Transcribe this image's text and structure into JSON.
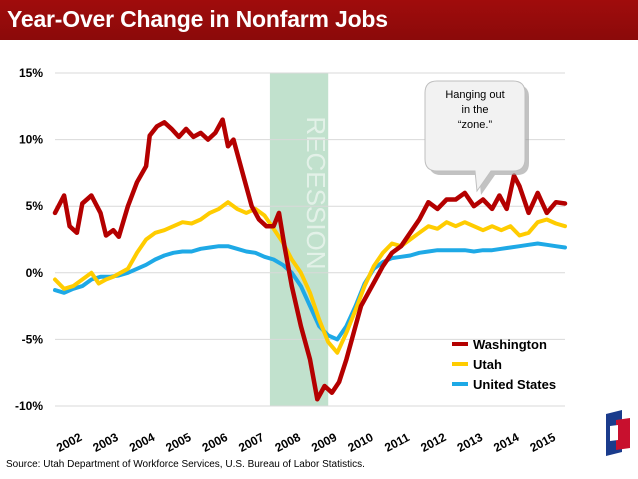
{
  "header": {
    "title": "Year-Over Change in Nonfarm Jobs"
  },
  "source": "Source: Utah Department of Workforce Services, U.S. Bureau of Labor Statistics.",
  "callout": {
    "lines": [
      "Hanging out",
      "in the",
      "“zone.”"
    ]
  },
  "recession_label": "RECESSION",
  "colors": {
    "header": "#990b0b",
    "washington": "#b40000",
    "utah": "#ffcc00",
    "us": "#1ea9e6",
    "recession": "#b6dcc4"
  },
  "chart_data": {
    "type": "line",
    "title": "Year-Over Change in Nonfarm Jobs",
    "xlabel": "",
    "ylabel": "",
    "ylim": [
      -10,
      15
    ],
    "yticks": [
      "15%",
      "10%",
      "5%",
      "0%",
      "-5%",
      "-10%"
    ],
    "ytick_values": [
      15,
      10,
      5,
      0,
      -5,
      -10
    ],
    "xticks": [
      "2002",
      "2003",
      "2004",
      "2005",
      "2006",
      "2007",
      "2008",
      "2009",
      "2010",
      "2011",
      "2012",
      "2013",
      "2014",
      "2015"
    ],
    "x_start": 2002.0,
    "x_end": 2016.0,
    "recession": [
      2007.9,
      2009.5
    ],
    "legend": {
      "position": "bottom-right"
    },
    "series": [
      {
        "name": "Washington",
        "key": "washington",
        "points": [
          [
            2002.0,
            4.5
          ],
          [
            2002.25,
            5.8
          ],
          [
            2002.4,
            3.5
          ],
          [
            2002.6,
            3.0
          ],
          [
            2002.75,
            5.2
          ],
          [
            2003.0,
            5.8
          ],
          [
            2003.25,
            4.5
          ],
          [
            2003.4,
            2.8
          ],
          [
            2003.6,
            3.2
          ],
          [
            2003.75,
            2.7
          ],
          [
            2004.0,
            5.0
          ],
          [
            2004.25,
            6.8
          ],
          [
            2004.5,
            8.0
          ],
          [
            2004.6,
            10.3
          ],
          [
            2004.8,
            11.0
          ],
          [
            2005.0,
            11.3
          ],
          [
            2005.2,
            10.8
          ],
          [
            2005.4,
            10.2
          ],
          [
            2005.6,
            10.8
          ],
          [
            2005.8,
            10.2
          ],
          [
            2006.0,
            10.5
          ],
          [
            2006.2,
            10.0
          ],
          [
            2006.4,
            10.5
          ],
          [
            2006.6,
            11.5
          ],
          [
            2006.75,
            9.5
          ],
          [
            2006.9,
            10.0
          ],
          [
            2007.0,
            9.0
          ],
          [
            2007.2,
            7.0
          ],
          [
            2007.4,
            5.0
          ],
          [
            2007.6,
            4.0
          ],
          [
            2007.8,
            3.5
          ],
          [
            2008.0,
            3.5
          ],
          [
            2008.15,
            4.5
          ],
          [
            2008.3,
            2.0
          ],
          [
            2008.5,
            -1.0
          ],
          [
            2008.75,
            -4.0
          ],
          [
            2009.0,
            -6.5
          ],
          [
            2009.2,
            -9.5
          ],
          [
            2009.4,
            -8.5
          ],
          [
            2009.6,
            -9.0
          ],
          [
            2009.8,
            -8.2
          ],
          [
            2010.0,
            -6.5
          ],
          [
            2010.2,
            -4.5
          ],
          [
            2010.4,
            -2.5
          ],
          [
            2010.6,
            -1.5
          ],
          [
            2010.8,
            -0.5
          ],
          [
            2011.0,
            0.5
          ],
          [
            2011.25,
            1.5
          ],
          [
            2011.5,
            2.0
          ],
          [
            2011.75,
            3.0
          ],
          [
            2012.0,
            4.0
          ],
          [
            2012.25,
            5.3
          ],
          [
            2012.5,
            4.8
          ],
          [
            2012.75,
            5.5
          ],
          [
            2013.0,
            5.5
          ],
          [
            2013.25,
            6.0
          ],
          [
            2013.5,
            5.0
          ],
          [
            2013.75,
            5.5
          ],
          [
            2014.0,
            4.8
          ],
          [
            2014.2,
            5.8
          ],
          [
            2014.4,
            4.8
          ],
          [
            2014.6,
            7.3
          ],
          [
            2014.75,
            6.5
          ],
          [
            2015.0,
            4.5
          ],
          [
            2015.25,
            6.0
          ],
          [
            2015.5,
            4.5
          ],
          [
            2015.75,
            5.3
          ],
          [
            2016.0,
            5.2
          ]
        ]
      },
      {
        "name": "Utah",
        "key": "utah",
        "points": [
          [
            2002.0,
            -0.5
          ],
          [
            2002.25,
            -1.2
          ],
          [
            2002.5,
            -1.0
          ],
          [
            2002.75,
            -0.5
          ],
          [
            2003.0,
            0.0
          ],
          [
            2003.2,
            -0.8
          ],
          [
            2003.4,
            -0.5
          ],
          [
            2003.6,
            -0.3
          ],
          [
            2003.8,
            0.0
          ],
          [
            2004.0,
            0.3
          ],
          [
            2004.25,
            1.5
          ],
          [
            2004.5,
            2.5
          ],
          [
            2004.75,
            3.0
          ],
          [
            2005.0,
            3.2
          ],
          [
            2005.25,
            3.5
          ],
          [
            2005.5,
            3.8
          ],
          [
            2005.75,
            3.7
          ],
          [
            2006.0,
            4.0
          ],
          [
            2006.25,
            4.5
          ],
          [
            2006.5,
            4.8
          ],
          [
            2006.75,
            5.3
          ],
          [
            2007.0,
            4.8
          ],
          [
            2007.25,
            4.5
          ],
          [
            2007.5,
            4.8
          ],
          [
            2007.75,
            4.3
          ],
          [
            2008.0,
            3.3
          ],
          [
            2008.25,
            2.3
          ],
          [
            2008.5,
            1.0
          ],
          [
            2008.75,
            0.0
          ],
          [
            2009.0,
            -1.5
          ],
          [
            2009.25,
            -3.5
          ],
          [
            2009.5,
            -5.2
          ],
          [
            2009.75,
            -6.0
          ],
          [
            2010.0,
            -4.5
          ],
          [
            2010.25,
            -2.8
          ],
          [
            2010.5,
            -1.0
          ],
          [
            2010.75,
            0.5
          ],
          [
            2011.0,
            1.5
          ],
          [
            2011.25,
            2.2
          ],
          [
            2011.5,
            2.0
          ],
          [
            2011.75,
            2.5
          ],
          [
            2012.0,
            3.0
          ],
          [
            2012.25,
            3.5
          ],
          [
            2012.5,
            3.3
          ],
          [
            2012.75,
            3.8
          ],
          [
            2013.0,
            3.5
          ],
          [
            2013.25,
            3.8
          ],
          [
            2013.5,
            3.5
          ],
          [
            2013.75,
            3.2
          ],
          [
            2014.0,
            3.5
          ],
          [
            2014.25,
            3.2
          ],
          [
            2014.5,
            3.5
          ],
          [
            2014.75,
            2.8
          ],
          [
            2015.0,
            3.0
          ],
          [
            2015.25,
            3.8
          ],
          [
            2015.5,
            4.0
          ],
          [
            2015.75,
            3.7
          ],
          [
            2016.0,
            3.5
          ]
        ]
      },
      {
        "name": "United States",
        "key": "us",
        "points": [
          [
            2002.0,
            -1.3
          ],
          [
            2002.25,
            -1.5
          ],
          [
            2002.5,
            -1.2
          ],
          [
            2002.75,
            -1.0
          ],
          [
            2003.0,
            -0.5
          ],
          [
            2003.25,
            -0.3
          ],
          [
            2003.5,
            -0.3
          ],
          [
            2003.75,
            -0.2
          ],
          [
            2004.0,
            0.0
          ],
          [
            2004.25,
            0.3
          ],
          [
            2004.5,
            0.6
          ],
          [
            2004.75,
            1.0
          ],
          [
            2005.0,
            1.3
          ],
          [
            2005.25,
            1.5
          ],
          [
            2005.5,
            1.6
          ],
          [
            2005.75,
            1.6
          ],
          [
            2006.0,
            1.8
          ],
          [
            2006.25,
            1.9
          ],
          [
            2006.5,
            2.0
          ],
          [
            2006.75,
            2.0
          ],
          [
            2007.0,
            1.8
          ],
          [
            2007.25,
            1.6
          ],
          [
            2007.5,
            1.5
          ],
          [
            2007.75,
            1.2
          ],
          [
            2008.0,
            1.0
          ],
          [
            2008.25,
            0.6
          ],
          [
            2008.5,
            0.0
          ],
          [
            2008.75,
            -1.0
          ],
          [
            2009.0,
            -2.5
          ],
          [
            2009.25,
            -4.0
          ],
          [
            2009.5,
            -4.7
          ],
          [
            2009.75,
            -5.0
          ],
          [
            2010.0,
            -4.0
          ],
          [
            2010.25,
            -2.5
          ],
          [
            2010.5,
            -0.8
          ],
          [
            2010.75,
            0.3
          ],
          [
            2011.0,
            0.8
          ],
          [
            2011.25,
            1.1
          ],
          [
            2011.5,
            1.2
          ],
          [
            2011.75,
            1.3
          ],
          [
            2012.0,
            1.5
          ],
          [
            2012.25,
            1.6
          ],
          [
            2012.5,
            1.7
          ],
          [
            2012.75,
            1.7
          ],
          [
            2013.0,
            1.7
          ],
          [
            2013.25,
            1.7
          ],
          [
            2013.5,
            1.6
          ],
          [
            2013.75,
            1.7
          ],
          [
            2014.0,
            1.7
          ],
          [
            2014.25,
            1.8
          ],
          [
            2014.5,
            1.9
          ],
          [
            2014.75,
            2.0
          ],
          [
            2015.0,
            2.1
          ],
          [
            2015.25,
            2.2
          ],
          [
            2015.5,
            2.1
          ],
          [
            2015.75,
            2.0
          ],
          [
            2016.0,
            1.9
          ]
        ]
      }
    ]
  }
}
